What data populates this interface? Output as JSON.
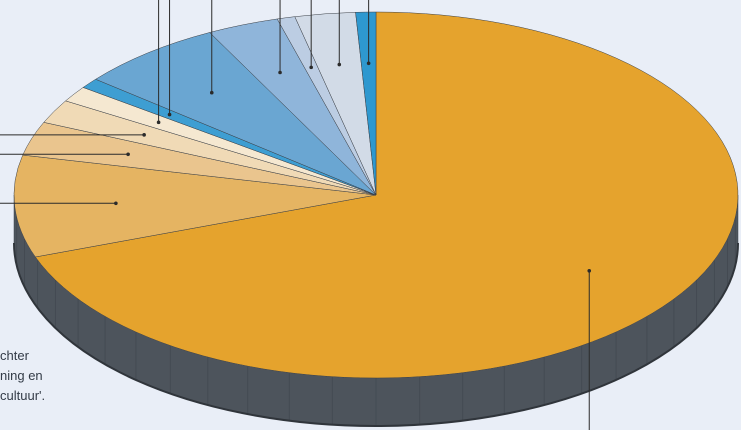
{
  "chart_data": {
    "type": "pie",
    "style": "3d-tilted",
    "start": "12 o'clock",
    "direction": "clockwise",
    "slices": [
      {
        "value": 69.5,
        "color": "#e5a32d"
      },
      {
        "value": 9.0,
        "color": "#e5b462"
      },
      {
        "value": 3.0,
        "color": "#eac58e"
      },
      {
        "value": 2.1,
        "color": "#f0dab6"
      },
      {
        "value": 1.4,
        "color": "#f5e8d1"
      },
      {
        "value": 0.9,
        "color": "#3e9ed2"
      },
      {
        "value": 6.5,
        "color": "#6aa6d2"
      },
      {
        "value": 3.2,
        "color": "#8fb5da"
      },
      {
        "value": 0.8,
        "color": "#bccde3"
      },
      {
        "value": 2.7,
        "color": "#d2dbe7"
      },
      {
        "value": 0.9,
        "color": "#2e98cf"
      }
    ],
    "legend": "none (leader lines to labels outside the visible area)"
  },
  "colors": {
    "background": "#e9eef7",
    "side": "#4d545c",
    "leader": "#2b2b2b"
  },
  "note_lines": [
    "chter",
    "ning en",
    "cultuur'."
  ]
}
